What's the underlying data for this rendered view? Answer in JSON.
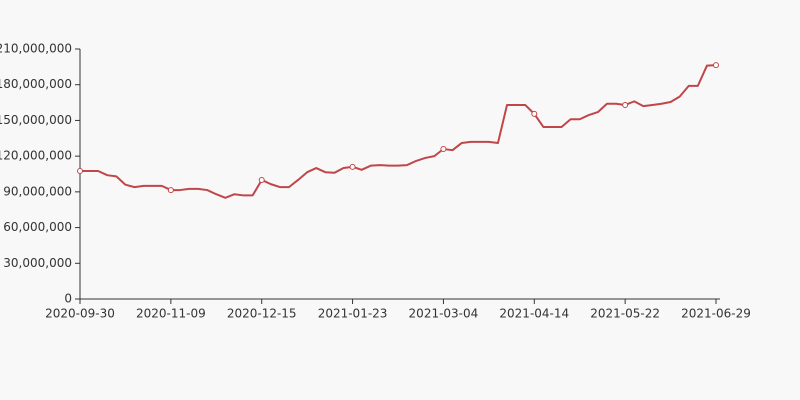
{
  "chart_data": {
    "type": "line",
    "categories": [
      "2020-09-30",
      null,
      null,
      null,
      null,
      null,
      null,
      null,
      null,
      null,
      "2020-11-09",
      null,
      null,
      null,
      null,
      null,
      null,
      null,
      null,
      null,
      "2020-12-15",
      null,
      null,
      null,
      null,
      null,
      null,
      null,
      null,
      null,
      "2021-01-23",
      null,
      null,
      null,
      null,
      null,
      null,
      null,
      null,
      null,
      "2021-03-04",
      null,
      null,
      null,
      null,
      null,
      null,
      null,
      null,
      null,
      "2021-04-14",
      null,
      null,
      null,
      null,
      null,
      null,
      null,
      null,
      null,
      "2021-05-22",
      null,
      null,
      null,
      null,
      null,
      null,
      null,
      null,
      null,
      "2021-06-29"
    ],
    "values": [
      107500000,
      107500000,
      107500000,
      104000000,
      103000000,
      96000000,
      94000000,
      95000000,
      95000000,
      95000000,
      91500000,
      91500000,
      92500000,
      92500000,
      91500000,
      88000000,
      85000000,
      88000000,
      87000000,
      87000000,
      100000000,
      96500000,
      94000000,
      94000000,
      100000000,
      106500000,
      110000000,
      106500000,
      106000000,
      110000000,
      111000000,
      108500000,
      112000000,
      112500000,
      112000000,
      112000000,
      112500000,
      116000000,
      118500000,
      120000000,
      126000000,
      125000000,
      131000000,
      132000000,
      132000000,
      132000000,
      131000000,
      163000000,
      163000000,
      163000000,
      155500000,
      144500000,
      144500000,
      144500000,
      151000000,
      151000000,
      154500000,
      157000000,
      164000000,
      164000000,
      163000000,
      166000000,
      162000000,
      163000000,
      164000000,
      165500000,
      170000000,
      179000000,
      179000000,
      196000000,
      196500000
    ],
    "color": "#c0464a",
    "ylim": [
      0,
      210000000
    ],
    "yticks": [
      0,
      {
        "value": 30000000,
        "label": "30,000,000"
      },
      {
        "value": 60000000,
        "label": "60,000,000"
      },
      {
        "value": 90000000,
        "label": "90,000,000"
      },
      {
        "value": 120000000,
        "label": "120,000,000"
      },
      {
        "value": 150000000,
        "label": "150,000,000"
      },
      {
        "value": 180000000,
        "label": "180,000,000"
      },
      {
        "value": 210000000,
        "label": "210,000,000"
      }
    ]
  }
}
